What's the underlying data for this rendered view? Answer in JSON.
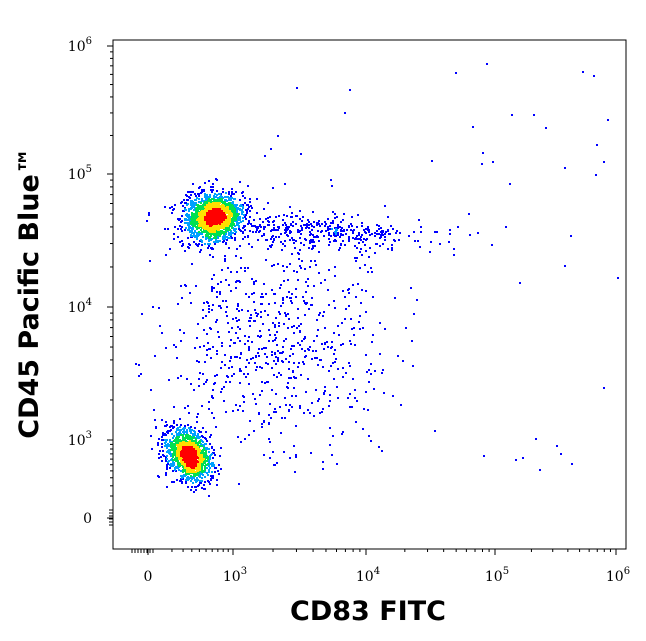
{
  "chart_data": {
    "type": "scatter",
    "xlabel": "CD83 FITC",
    "ylabel": "CD45 Pacific Blue™",
    "x_scale": "biexponential",
    "y_scale": "biexponential",
    "x_ticks": [
      {
        "value": 0,
        "base": "0",
        "exp": ""
      },
      {
        "value": 1000,
        "base": "10",
        "exp": "3"
      },
      {
        "value": 10000,
        "base": "10",
        "exp": "4"
      },
      {
        "value": 100000,
        "base": "10",
        "exp": "5"
      },
      {
        "value": 1000000,
        "base": "10",
        "exp": "6"
      }
    ],
    "y_ticks": [
      {
        "value": 0,
        "base": "0",
        "exp": ""
      },
      {
        "value": 1000,
        "base": "10",
        "exp": "3"
      },
      {
        "value": 10000,
        "base": "10",
        "exp": "4"
      },
      {
        "value": 100000,
        "base": "10",
        "exp": "5"
      },
      {
        "value": 1000000,
        "base": "10",
        "exp": "6"
      }
    ],
    "populations": [
      {
        "x_center": 250,
        "y_center": 700,
        "count": 1400
      },
      {
        "x_center": 600,
        "y_center": 48000,
        "count": 1600
      },
      {
        "x_center": 4000,
        "y_center": 38000,
        "count": 400
      },
      {
        "x_center": 2000,
        "y_center": 6000,
        "count": 700
      }
    ],
    "colormap": [
      "#0000ff",
      "#00a0ff",
      "#00e050",
      "#ffe000",
      "#ff0000"
    ],
    "grid": false,
    "legend": "none"
  }
}
